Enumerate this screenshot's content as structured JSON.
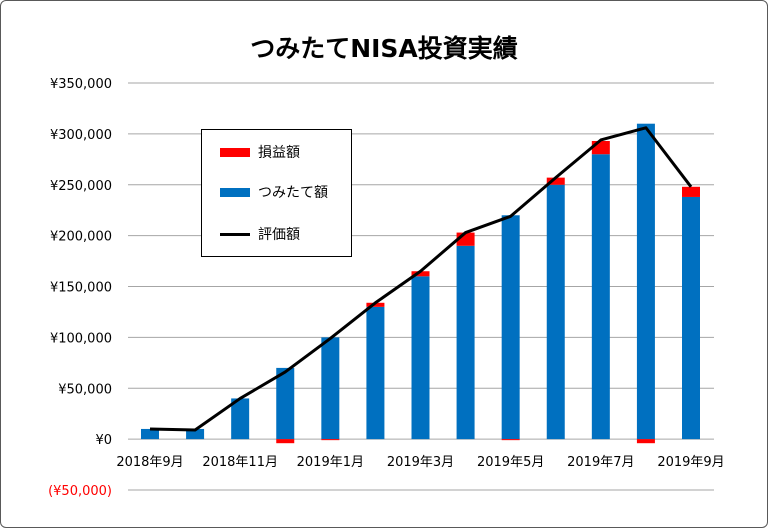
{
  "chart_data": {
    "type": "bar",
    "title": "つみたてNISA投資実績",
    "categories": [
      "2018年9月",
      "2018年10月",
      "2018年11月",
      "2018年12月",
      "2019年1月",
      "2019年2月",
      "2019年3月",
      "2019年4月",
      "2019年5月",
      "2019年6月",
      "2019年7月",
      "2019年8月",
      "2019年9月"
    ],
    "tick_labels": [
      "2018年9月",
      "2018年11月",
      "2019年1月",
      "2019年3月",
      "2019年5月",
      "2019年7月",
      "2019年9月"
    ],
    "ylim": [
      -50000,
      350000
    ],
    "yticks": [
      "(¥50,000)",
      "¥0",
      "¥50,000",
      "¥100,000",
      "¥150,000",
      "¥200,000",
      "¥250,000",
      "¥300,000",
      "¥350,000"
    ],
    "ytick_values": [
      -50000,
      0,
      50000,
      100000,
      150000,
      200000,
      250000,
      300000,
      350000
    ],
    "grid": true,
    "legend_placement": "top-left",
    "series": [
      {
        "name": "損益額",
        "kind": "stacked-bar",
        "color": "#ff0000",
        "values": [
          0,
          0,
          0,
          -4000,
          -1000,
          4000,
          5000,
          13000,
          -1000,
          7000,
          13000,
          -4000,
          10000
        ]
      },
      {
        "name": "つみたて額",
        "kind": "stacked-bar",
        "color": "#0070c0",
        "values": [
          10000,
          10000,
          40000,
          70000,
          100000,
          130000,
          160000,
          190000,
          220000,
          250000,
          280000,
          310000,
          238000
        ]
      },
      {
        "name": "評価額",
        "kind": "line",
        "color": "#000000",
        "values": [
          10000,
          9000,
          40000,
          66000,
          99000,
          134000,
          165000,
          203000,
          219000,
          257000,
          294000,
          306000,
          248000
        ]
      }
    ],
    "negative_tick_color": "#ff0000"
  }
}
